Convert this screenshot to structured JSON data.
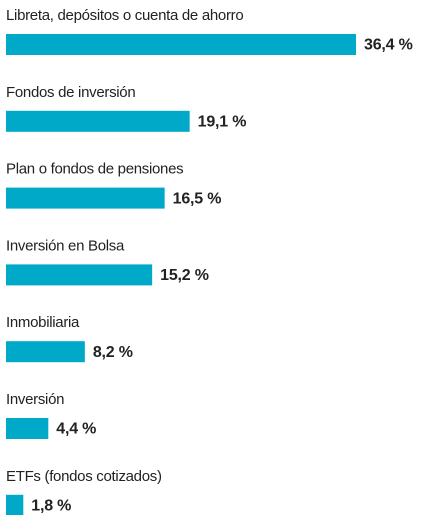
{
  "chart_data": {
    "type": "hbar",
    "categories": [
      "Libreta, depósitos o cuenta de ahorro",
      "Fondos de inversión",
      "Plan o fondos de pensiones",
      "Inversión en Bolsa",
      "Inmobiliaria",
      "Inversión",
      "ETFs (fondos cotizados)"
    ],
    "values": [
      36.4,
      19.1,
      16.5,
      15.2,
      8.2,
      4.4,
      1.8
    ],
    "value_labels": [
      "36,4 %",
      "19,1 %",
      "16,5 %",
      "15,2 %",
      "8,2 %",
      "4,4 %",
      "1,8 %"
    ],
    "color": "#00a9c8"
  }
}
